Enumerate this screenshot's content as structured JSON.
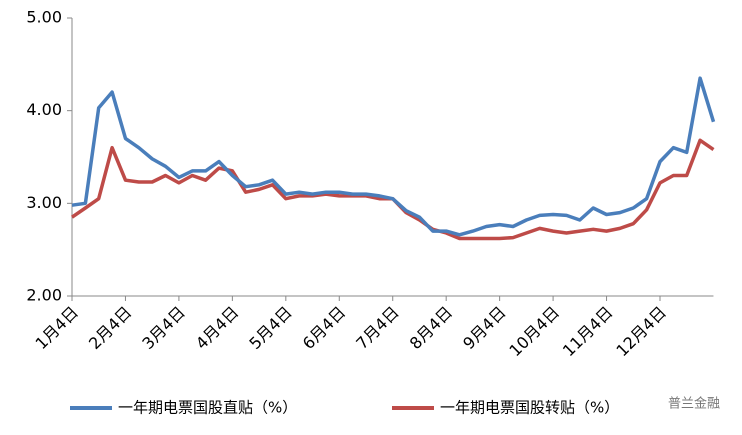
{
  "chart_data": {
    "type": "line",
    "categories": [
      "1月4日",
      null,
      null,
      null,
      "2月4日",
      null,
      null,
      null,
      "3月4日",
      null,
      null,
      null,
      "4月4日",
      null,
      null,
      null,
      "5月4日",
      null,
      null,
      null,
      "6月4日",
      null,
      null,
      null,
      "7月4日",
      null,
      null,
      null,
      "8月4日",
      null,
      null,
      null,
      "9月4日",
      null,
      null,
      null,
      "10月4日",
      null,
      null,
      null,
      "11月4日",
      null,
      null,
      null,
      "12月4日",
      null,
      null,
      null,
      null
    ],
    "series": [
      {
        "name": "一年期电票国股直贴（%）",
        "color": "#4a7ebb",
        "values": [
          2.98,
          3.0,
          4.03,
          4.2,
          3.7,
          3.6,
          3.48,
          3.4,
          3.28,
          3.35,
          3.35,
          3.45,
          3.3,
          3.18,
          3.2,
          3.25,
          3.1,
          3.12,
          3.1,
          3.12,
          3.12,
          3.1,
          3.1,
          3.08,
          3.05,
          2.92,
          2.85,
          2.7,
          2.7,
          2.66,
          2.7,
          2.75,
          2.77,
          2.75,
          2.82,
          2.87,
          2.88,
          2.87,
          2.82,
          2.95,
          2.88,
          2.9,
          2.95,
          3.05,
          3.45,
          3.6,
          3.55,
          4.35,
          3.88
        ]
      },
      {
        "name": "一年期电票国股转贴（%）",
        "color": "#be4b48",
        "values": [
          2.85,
          2.95,
          3.05,
          3.6,
          3.25,
          3.23,
          3.23,
          3.3,
          3.22,
          3.3,
          3.25,
          3.38,
          3.35,
          3.12,
          3.15,
          3.2,
          3.05,
          3.08,
          3.08,
          3.1,
          3.08,
          3.08,
          3.08,
          3.05,
          3.05,
          2.9,
          2.82,
          2.72,
          2.68,
          2.62,
          2.62,
          2.62,
          2.62,
          2.63,
          2.68,
          2.73,
          2.7,
          2.68,
          2.7,
          2.72,
          2.7,
          2.73,
          2.78,
          2.93,
          3.22,
          3.3,
          3.3,
          3.68,
          3.58
        ]
      }
    ],
    "ylim": [
      2,
      5
    ],
    "yticks": [
      {
        "value": 2,
        "label": "2.00"
      },
      {
        "value": 3,
        "label": "3.00"
      },
      {
        "value": 4,
        "label": "4.00"
      },
      {
        "value": 5,
        "label": "5.00"
      }
    ],
    "legend": "bottom",
    "watermark": "普兰金融"
  }
}
